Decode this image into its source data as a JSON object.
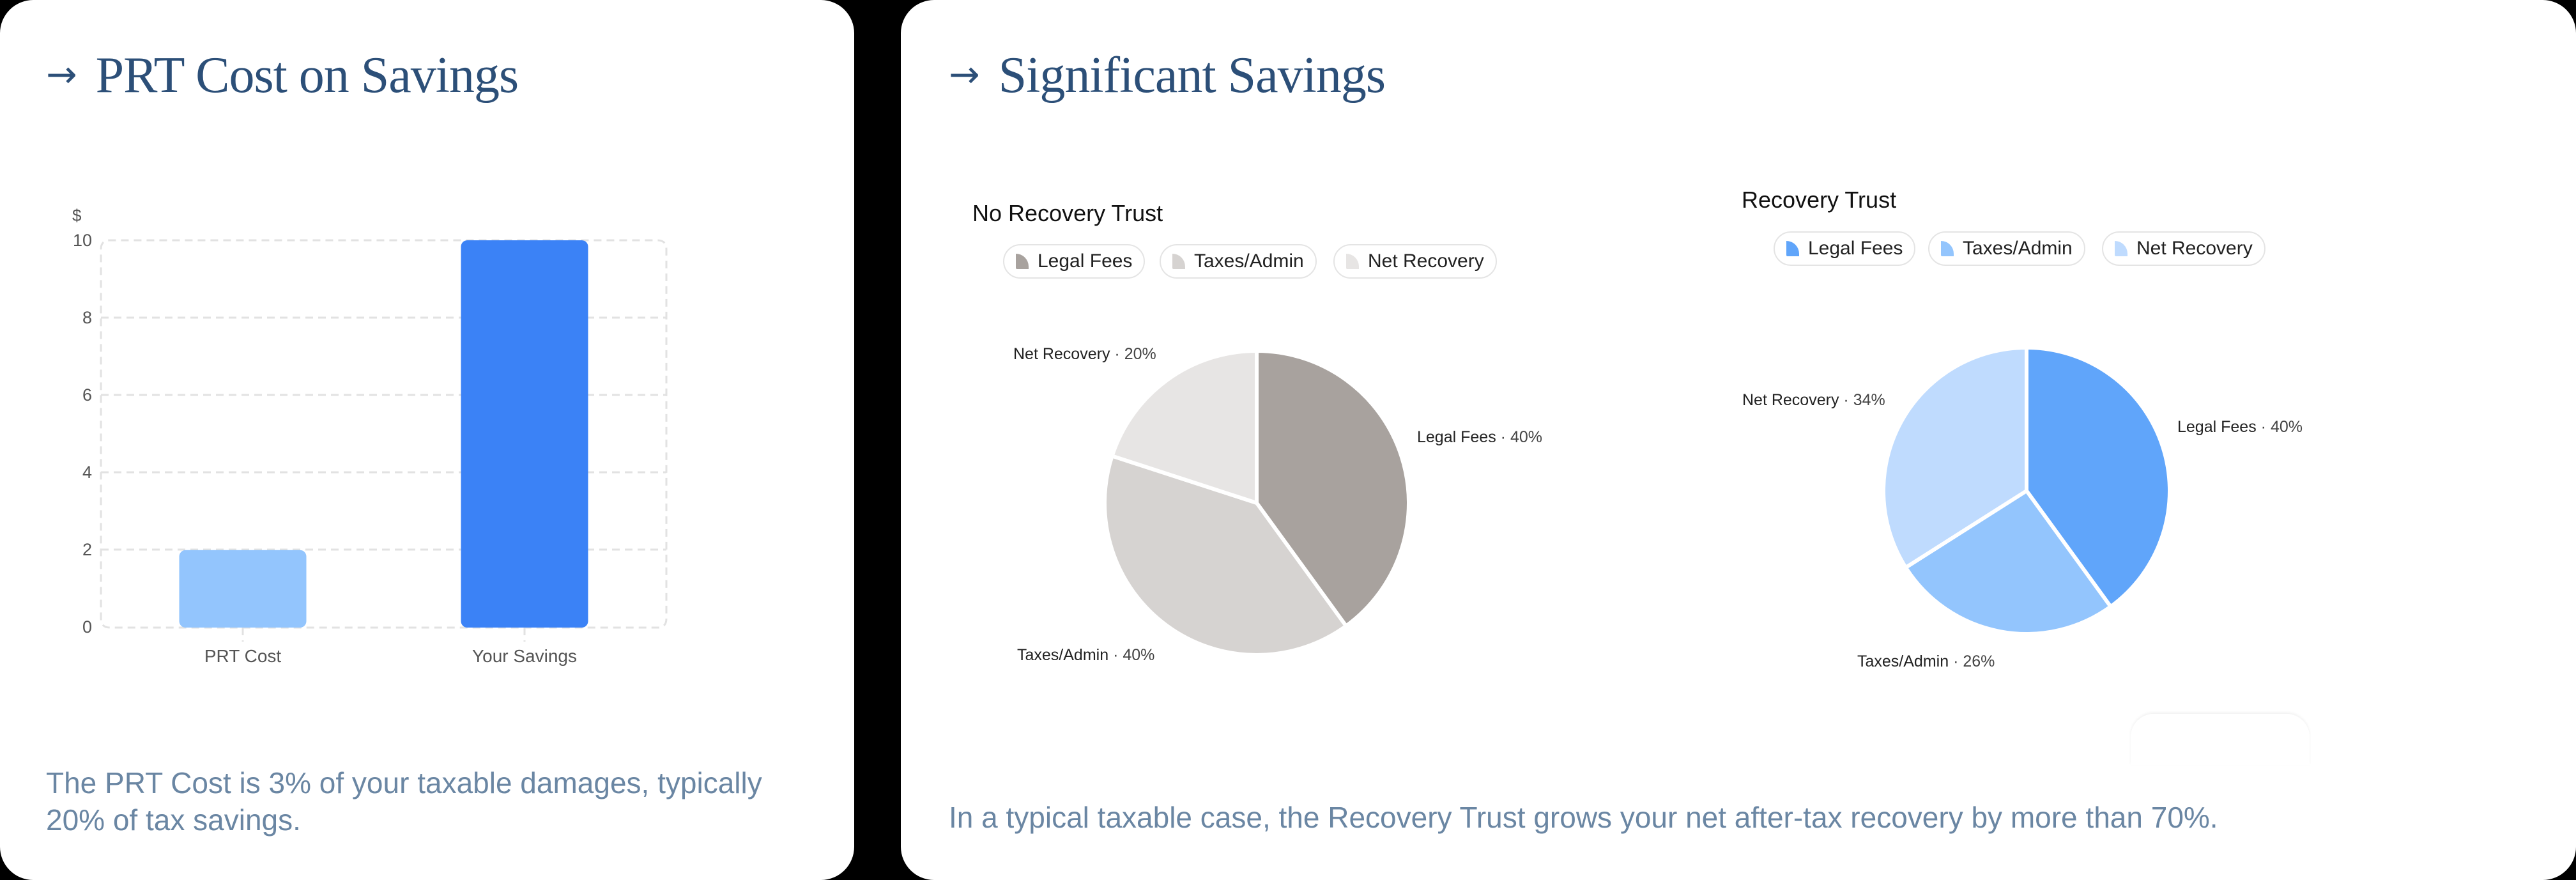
{
  "left_card": {
    "title_arrow": "→",
    "title": "PRT Cost on Savings",
    "caption": "The PRT Cost is 3% of your taxable damages, typically 20% of tax savings.",
    "caption_line1": "The PRT Cost is 3% of your taxable damages, typically",
    "caption_line2": "20% of tax savings."
  },
  "right_card": {
    "title_arrow": "→",
    "title": "Significant Savings",
    "caption": "In a typical taxable case, the Recovery Trust grows your net after-tax recovery by more than 70%."
  },
  "chart_data": [
    {
      "type": "bar",
      "title": "PRT Cost on Savings",
      "ylabel": "$",
      "xlabel": "",
      "categories": [
        "PRT Cost",
        "Your Savings"
      ],
      "values": [
        2,
        10
      ],
      "colors": [
        "#93c5fd",
        "#3b82f6"
      ],
      "yticks": [
        "0",
        "2",
        "4",
        "6",
        "8",
        "10"
      ],
      "ylim": [
        0,
        10
      ],
      "grid": true,
      "legend": null
    },
    {
      "type": "pie",
      "title": "No Recovery Trust",
      "categories": [
        "Legal Fees",
        "Taxes/Admin",
        "Net Recovery"
      ],
      "values": [
        40,
        40,
        20
      ],
      "labels": [
        "Legal Fees · 40%",
        "Taxes/Admin · 40%",
        "Net Recovery · 20%"
      ],
      "colors": [
        "#a8a29e",
        "#d6d3d1",
        "#e7e5e4"
      ],
      "legend_position": "top"
    },
    {
      "type": "pie",
      "title": "Recovery Trust",
      "categories": [
        "Legal Fees",
        "Taxes/Admin",
        "Net Recovery"
      ],
      "values": [
        40,
        26,
        34
      ],
      "labels": [
        "Legal Fees · 40%",
        "Taxes/Admin · 26%",
        "Net Recovery · 34%"
      ],
      "colors": [
        "#60a5fa",
        "#93c5fd",
        "#bfdbfe"
      ],
      "legend_position": "top"
    }
  ],
  "pies": [
    {
      "title": "No Recovery Trust",
      "legend": [
        {
          "label": "Legal Fees",
          "color": "#a8a29e"
        },
        {
          "label": "Taxes/Admin",
          "color": "#d6d3d1"
        },
        {
          "label": "Net Recovery",
          "color": "#e7e5e4"
        }
      ],
      "slice_labels": [
        {
          "name": "Legal Fees",
          "pct": "40%"
        },
        {
          "name": "Taxes/Admin",
          "pct": "40%"
        },
        {
          "name": "Net Recovery",
          "pct": "20%"
        }
      ]
    },
    {
      "title": "Recovery Trust",
      "legend": [
        {
          "label": "Legal Fees",
          "color": "#60a5fa"
        },
        {
          "label": "Taxes/Admin",
          "color": "#93c5fd"
        },
        {
          "label": "Net Recovery",
          "color": "#bfdbfe"
        }
      ],
      "slice_labels": [
        {
          "name": "Legal Fees",
          "pct": "40%"
        },
        {
          "name": "Taxes/Admin",
          "pct": "26%"
        },
        {
          "name": "Net Recovery",
          "pct": "34%"
        }
      ]
    }
  ],
  "separator": "·",
  "colors": {
    "title": "#2c4f78",
    "caption": "#6a86a3",
    "background": "#000000",
    "card": "#ffffff"
  }
}
